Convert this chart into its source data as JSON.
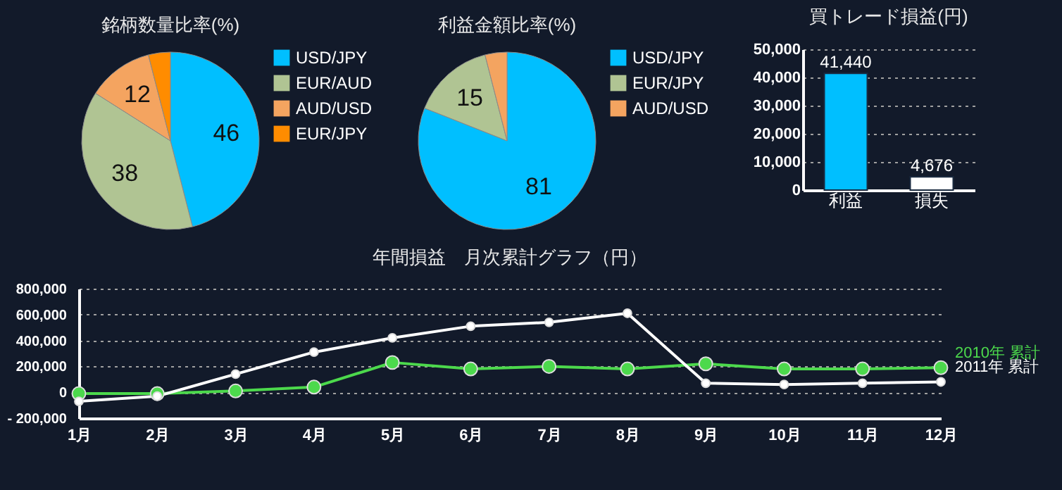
{
  "chart_data": [
    {
      "type": "pie",
      "title": "銘柄数量比率(%)",
      "categories": [
        "USD/JPY",
        "EUR/AUD",
        "AUD/USD",
        "EUR/JPY"
      ],
      "values": [
        46,
        38,
        12,
        4
      ],
      "colors": [
        "#00bfff",
        "#b0c493",
        "#f4a460",
        "#ff8c00"
      ],
      "value_labels": [
        "46",
        "38",
        "12",
        null
      ],
      "legend": "right"
    },
    {
      "type": "pie",
      "title": "利益金額比率(%)",
      "categories": [
        "USD/JPY",
        "EUR/JPY",
        "AUD/USD"
      ],
      "values": [
        81,
        15,
        4
      ],
      "colors": [
        "#00bfff",
        "#b0c493",
        "#f4a460"
      ],
      "value_labels": [
        "81",
        "15",
        null
      ],
      "legend": "right"
    },
    {
      "type": "bar",
      "title": "買トレード損益(円)",
      "categories": [
        "利益",
        "損失"
      ],
      "values": [
        41440,
        4676
      ],
      "colors": [
        "#00bfff",
        "#ffffff"
      ],
      "ylim": [
        0,
        50000
      ],
      "yticks": [
        0,
        {
          "value": 10000,
          "label": "10,000"
        },
        {
          "value": 20000,
          "label": "20,000"
        },
        {
          "value": 30000,
          "label": "30,000"
        },
        {
          "value": 40000,
          "label": "40,000"
        },
        {
          "value": 50000,
          "label": "50,000"
        }
      ],
      "grid": "y",
      "value_labels": [
        "41,440",
        "4,676"
      ]
    },
    {
      "type": "line",
      "title": "年間損益　月次累計グラフ（円）",
      "categories": [
        "1月",
        "2月",
        "3月",
        "4月",
        "5月",
        "6月",
        "7月",
        "8月",
        "9月",
        "10月",
        "11月",
        "12月"
      ],
      "series": [
        {
          "name": "2010年 累計",
          "color": "#4cd94c",
          "values": [
            -10000,
            -10000,
            10000,
            40000,
            230000,
            180000,
            200000,
            180000,
            220000,
            180000,
            180000,
            190000
          ]
        },
        {
          "name": "2011年 累計",
          "color": "#ffffff",
          "values": [
            -70000,
            -30000,
            140000,
            310000,
            420000,
            510000,
            540000,
            610000,
            70000,
            60000,
            70000,
            80000
          ]
        }
      ],
      "ylim": [
        -200000,
        800000
      ],
      "yticks": [
        {
          "value": -200000,
          "label": "- 200,000"
        },
        0,
        {
          "value": 200000,
          "label": "200,000"
        },
        {
          "value": 400000,
          "label": "400,000"
        },
        {
          "value": 600000,
          "label": "600,000"
        },
        {
          "value": 800000,
          "label": "800,000"
        }
      ],
      "grid": "y",
      "marker": "circle",
      "legend": "right"
    }
  ]
}
